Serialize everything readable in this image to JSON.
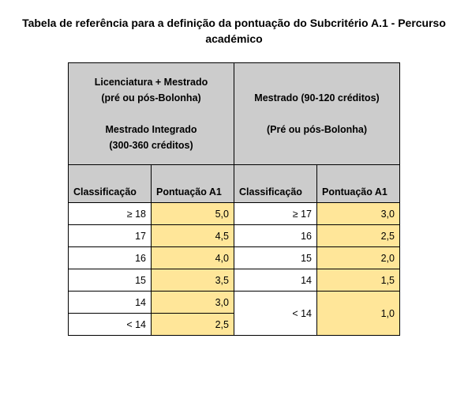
{
  "title": "Tabela de referência para a definição da pontuação do Subcritério A.1 - Percurso académico",
  "group_left": {
    "line1": "Licenciatura + Mestrado",
    "line2": "(pré ou pós-Bolonha)",
    "line3": "Mestrado Integrado",
    "line4": "(300-360 créditos)"
  },
  "group_right": {
    "line1": "Mestrado (90-120 créditos)",
    "line2": "(Pré ou pós-Bolonha)"
  },
  "cols": {
    "left_class": "Classificação",
    "left_score": "Pontuação A1",
    "right_class": "Classificação",
    "right_score": "Pontuação A1"
  },
  "rows": [
    {
      "lc": "≥ 18",
      "ls": "5,0",
      "rc": "≥ 17",
      "rs": "3,0"
    },
    {
      "lc": "17",
      "ls": "4,5",
      "rc": "16",
      "rs": "2,5"
    },
    {
      "lc": "16",
      "ls": "4,0",
      "rc": "15",
      "rs": "2,0"
    },
    {
      "lc": "15",
      "ls": "3,5",
      "rc": "14",
      "rs": "1,5"
    },
    {
      "lc": "14",
      "ls": "3,0",
      "rc": "< 14",
      "rs": "1,0",
      "r_rowspan": 2
    },
    {
      "lc": "< 14",
      "ls": "2,5"
    }
  ],
  "colors": {
    "header_bg": "#cccccc",
    "score_bg": "#ffe699",
    "border": "#000000",
    "page_bg": "#ffffff"
  }
}
